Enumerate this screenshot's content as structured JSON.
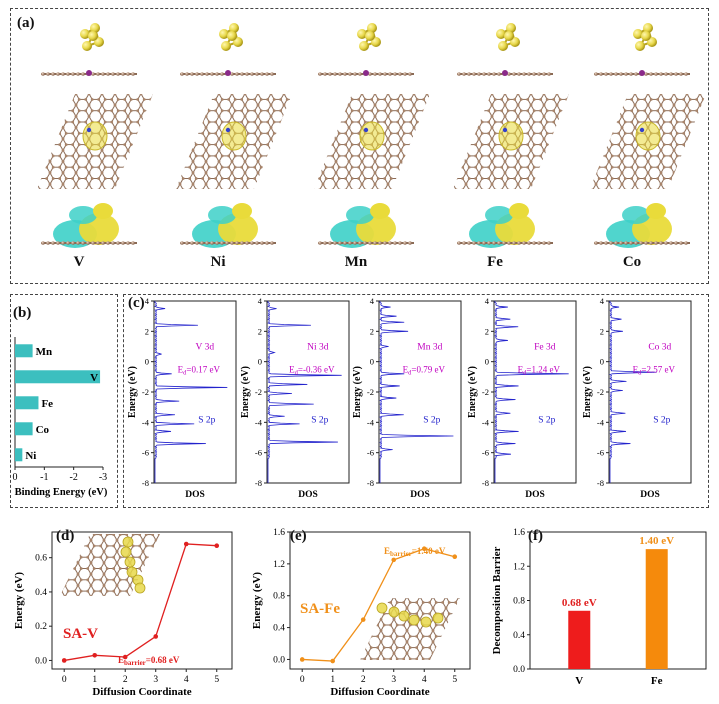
{
  "figure": {
    "panel_labels": {
      "a": "(a)",
      "b": "(b)",
      "c": "(c)",
      "d": "(d)",
      "e": "(e)",
      "f": "(f)"
    },
    "panel_a": {
      "metals": [
        "V",
        "Ni",
        "Mn",
        "Fe",
        "Co"
      ],
      "colors": {
        "sulfur": "#e8d84a",
        "sulfur_dark": "#b8a420",
        "carbon": "#a8846a",
        "bond": "#8a6a55",
        "charge_accum": "#e9db3a",
        "charge_depl": "#3dd0c8"
      }
    },
    "panel_b": {
      "chart_data": {
        "type": "bar",
        "orientation": "horizontal",
        "categories": [
          "Mn",
          "V",
          "Fe",
          "Co",
          "Ni"
        ],
        "values": [
          -0.6,
          -2.9,
          -0.8,
          -0.6,
          -0.25
        ],
        "xlabel": "Binding Energy (eV)",
        "xlim": [
          0,
          -3
        ],
        "xticks": [
          "0",
          "-1",
          "-2",
          "-3"
        ],
        "bar_color": "#3cbfbf"
      }
    },
    "panel_c": {
      "chart_data": [
        {
          "type": "line",
          "metal": "V",
          "metal_label": "V 3d",
          "ed_label": "E",
          "ed_sub": "d",
          "ed_value": "=0.17 eV",
          "s_label": "S 2p",
          "xlabel": "DOS",
          "ylabel": "Energy (eV)",
          "ylim": [
            -8,
            4
          ],
          "yticks": [
            "4",
            "2",
            "0",
            "-2",
            "-4",
            "-6",
            "-8"
          ],
          "peaks": [
            [
              3.5,
              0.12
            ],
            [
              2.4,
              0.55
            ],
            [
              0.5,
              0.08
            ],
            [
              -0.8,
              0.2
            ],
            [
              -1.7,
              0.95
            ],
            [
              -2.6,
              0.3
            ],
            [
              -3.5,
              0.25
            ],
            [
              -4.1,
              0.5
            ],
            [
              -4.6,
              0.2
            ],
            [
              -5.4,
              0.65
            ]
          ]
        },
        {
          "type": "line",
          "metal": "Ni",
          "metal_label": "Ni 3d",
          "ed_label": "E",
          "ed_sub": "d",
          "ed_value": "=-0.36 eV",
          "s_label": "S 2p",
          "xlabel": "DOS",
          "ylabel": "Energy (eV)",
          "ylim": [
            -8,
            4
          ],
          "yticks": [
            "4",
            "2",
            "0",
            "-2",
            "-4",
            "-6",
            "-8"
          ],
          "peaks": [
            [
              3.5,
              0.1
            ],
            [
              2.4,
              0.55
            ],
            [
              0.6,
              0.08
            ],
            [
              -0.9,
              0.95
            ],
            [
              -1.5,
              0.5
            ],
            [
              -2.1,
              0.3
            ],
            [
              -2.8,
              0.6
            ],
            [
              -3.6,
              0.2
            ],
            [
              -4.1,
              0.4
            ],
            [
              -5.3,
              0.9
            ]
          ]
        },
        {
          "type": "line",
          "metal": "Mn",
          "metal_label": "Mn 3d",
          "ed_label": "E",
          "ed_sub": "d",
          "ed_value": "=0.79 eV",
          "s_label": "S 2p",
          "xlabel": "DOS",
          "ylabel": "Energy (eV)",
          "ylim": [
            -8,
            4
          ],
          "yticks": [
            "4",
            "2",
            "0",
            "-2",
            "-4",
            "-6",
            "-8"
          ],
          "peaks": [
            [
              3.6,
              0.12
            ],
            [
              3.0,
              0.2
            ],
            [
              2.6,
              0.3
            ],
            [
              2.0,
              0.35
            ],
            [
              1.0,
              0.1
            ],
            [
              -0.8,
              0.3
            ],
            [
              -1.6,
              0.25
            ],
            [
              -2.4,
              0.2
            ],
            [
              -3.5,
              0.3
            ],
            [
              -4.9,
              0.95
            ],
            [
              -5.8,
              0.15
            ]
          ]
        },
        {
          "type": "line",
          "metal": "Fe",
          "metal_label": "Fe 3d",
          "ed_label": "E",
          "ed_sub": "d",
          "ed_value": "=1.24 eV",
          "s_label": "S 2p",
          "xlabel": "DOS",
          "ylabel": "Energy (eV)",
          "ylim": [
            -8,
            4
          ],
          "yticks": [
            "4",
            "2",
            "0",
            "-2",
            "-4",
            "-6",
            "-8"
          ],
          "peaks": [
            [
              3.6,
              0.15
            ],
            [
              2.8,
              0.2
            ],
            [
              2.3,
              0.3
            ],
            [
              1.4,
              0.15
            ],
            [
              -0.8,
              0.95
            ],
            [
              -1.6,
              0.3
            ],
            [
              -2.5,
              0.25
            ],
            [
              -3.4,
              0.2
            ],
            [
              -4.6,
              0.3
            ],
            [
              -5.4,
              0.25
            ],
            [
              -6.1,
              0.2
            ]
          ]
        },
        {
          "type": "line",
          "metal": "Co",
          "metal_label": "Co 3d",
          "ed_label": "E",
          "ed_sub": "d",
          "ed_value": "=2.57 eV",
          "s_label": "S 2p",
          "xlabel": "DOS",
          "ylabel": "Energy (eV)",
          "ylim": [
            -8,
            4
          ],
          "yticks": [
            "4",
            "2",
            "0",
            "-2",
            "-4",
            "-6",
            "-8"
          ],
          "peaks": [
            [
              3.6,
              0.1
            ],
            [
              2.8,
              0.15
            ],
            [
              2.0,
              0.15
            ],
            [
              -0.7,
              0.6
            ],
            [
              -1.3,
              0.2
            ],
            [
              -1.9,
              0.15
            ],
            [
              -3.4,
              0.2
            ],
            [
              -4.6,
              0.2
            ],
            [
              -5.4,
              0.25
            ]
          ]
        }
      ],
      "colors": {
        "line": "#2222cc",
        "metal_text": "#c000c0",
        "s_text": "#2222cc"
      }
    },
    "panel_d": {
      "chart_data": {
        "type": "line",
        "series_label": "SA-V",
        "barrier_label": "E",
        "barrier_sub": "barrier",
        "barrier_value": "=0.68 eV",
        "x": [
          0,
          1,
          2,
          3,
          4,
          5
        ],
        "y": [
          0.0,
          0.03,
          0.02,
          0.14,
          0.68,
          0.67
        ],
        "xlabel": "Diffusion Coordinate",
        "ylabel": "Energy (eV)",
        "xlim": [
          -0.4,
          5.5
        ],
        "ylim": [
          -0.05,
          0.75
        ],
        "xticks": [
          0,
          1,
          2,
          3,
          4,
          5
        ],
        "yticks": [
          0.0,
          0.2,
          0.4,
          0.6
        ],
        "ytick_labels": [
          "0.0",
          "0.2",
          "0.4",
          "0.6"
        ],
        "color": "#e02020"
      }
    },
    "panel_e": {
      "chart_data": {
        "type": "line",
        "series_label": "SA-Fe",
        "barrier_label": "E",
        "barrier_sub": "barrier",
        "barrier_value": "=1.40 eV",
        "x": [
          0,
          1,
          2,
          3,
          4,
          5
        ],
        "y": [
          0.0,
          -0.02,
          0.5,
          1.25,
          1.39,
          1.29
        ],
        "xlabel": "Diffusion Coordinate",
        "ylabel": "Energy (eV)",
        "xlim": [
          -0.4,
          5.5
        ],
        "ylim": [
          -0.12,
          1.6
        ],
        "xticks": [
          0,
          1,
          2,
          3,
          4,
          5
        ],
        "yticks": [
          0.0,
          0.4,
          0.8,
          1.2,
          1.6
        ],
        "ytick_labels": [
          "0.0",
          "0.4",
          "0.8",
          "1.2",
          "1.6"
        ],
        "color": "#f0901a"
      }
    },
    "panel_f": {
      "chart_data": {
        "type": "bar",
        "categories": [
          "V",
          "Fe"
        ],
        "values": [
          0.68,
          1.4
        ],
        "data_labels": [
          "0.68 eV",
          "1.40 eV"
        ],
        "ylabel": "Decomposition Barrier",
        "ylim": [
          0,
          1.6
        ],
        "yticks": [
          0.0,
          0.4,
          0.8,
          1.2,
          1.6
        ],
        "ytick_labels": [
          "0.0",
          "0.4",
          "0.8",
          "1.2",
          "1.6"
        ],
        "colors": [
          "#ee1c1c",
          "#f58a0c"
        ],
        "label_colors": [
          "#e02020",
          "#f0901a"
        ]
      }
    }
  }
}
